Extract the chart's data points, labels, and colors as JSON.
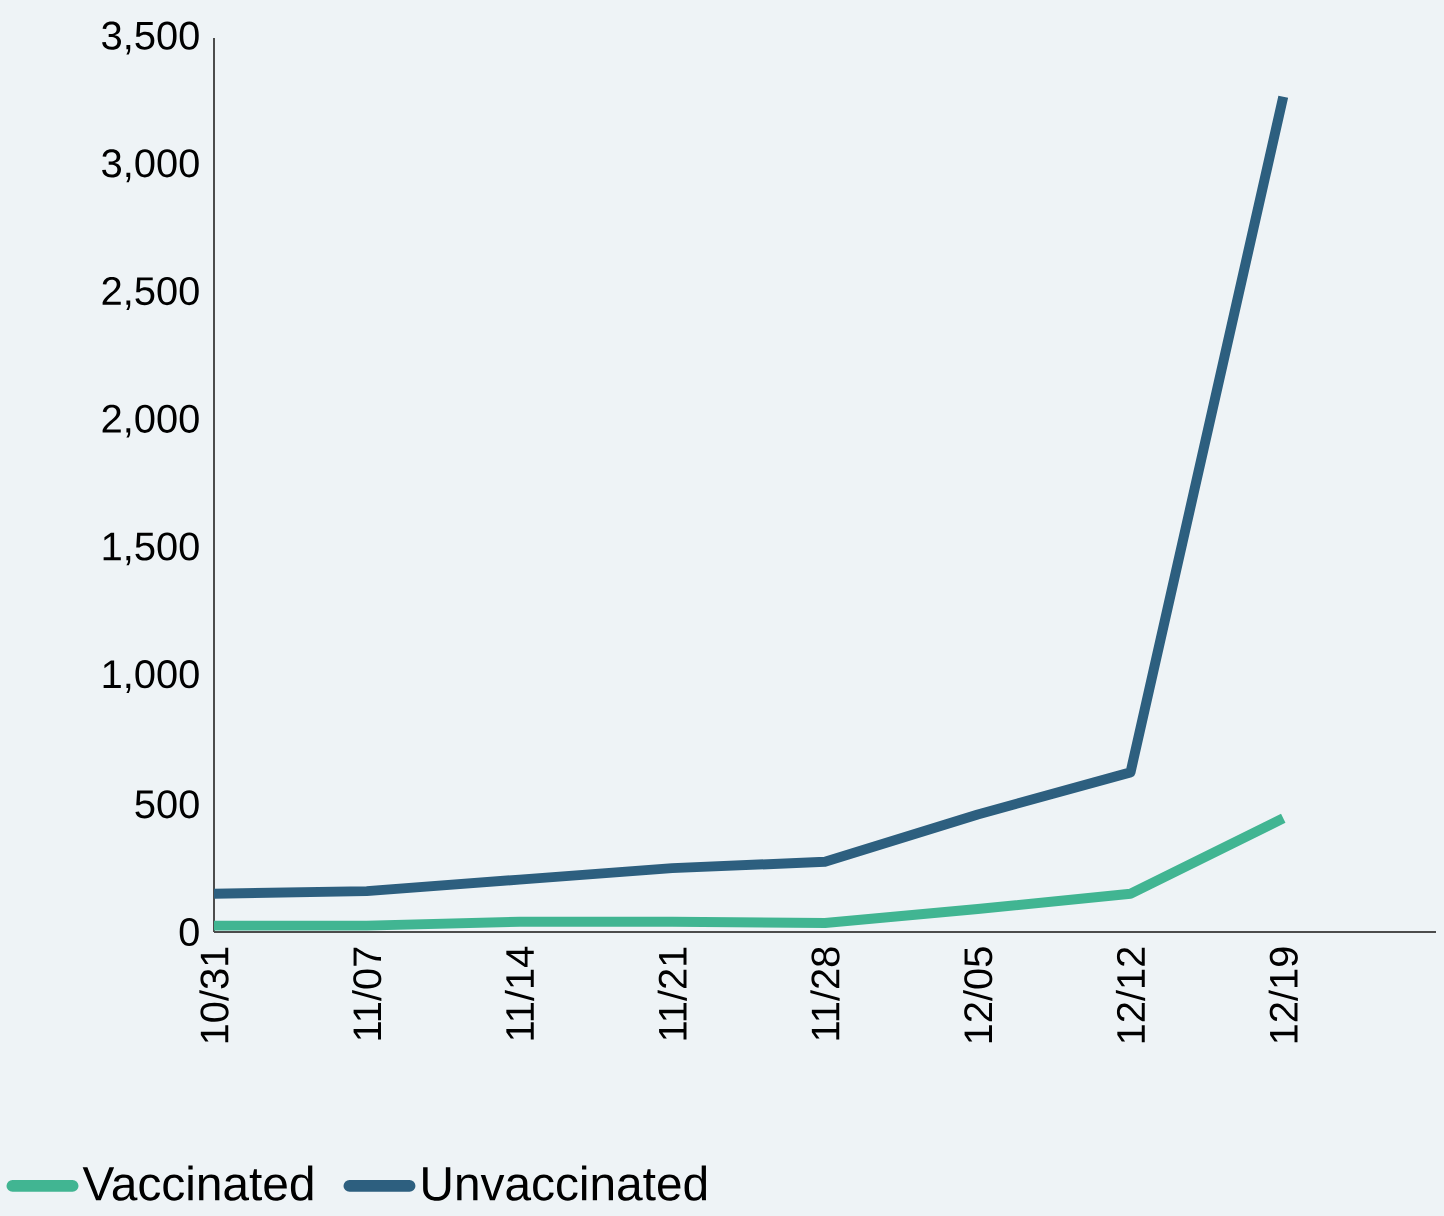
{
  "chart_data": {
    "type": "line",
    "categories": [
      "10/31",
      "11/07",
      "11/14",
      "11/21",
      "11/28",
      "12/05",
      "12/12",
      "12/19"
    ],
    "series": [
      {
        "name": "Vaccinated",
        "color": "#41b592",
        "values": [
          25,
          25,
          40,
          40,
          35,
          90,
          150,
          445
        ]
      },
      {
        "name": "Unvaccinated",
        "color": "#2d5f7f",
        "values": [
          150,
          160,
          205,
          250,
          275,
          460,
          625,
          3270
        ]
      }
    ],
    "ylim": [
      0,
      3500
    ],
    "yticks": [
      0,
      500,
      {
        "value": 1000,
        "label": "1,000"
      },
      {
        "value": 1500,
        "label": "1,500"
      },
      {
        "value": 2000,
        "label": "2,000"
      },
      {
        "value": 2500,
        "label": "2,500"
      },
      {
        "value": 3000,
        "label": "3,000"
      },
      {
        "value": 3500,
        "label": "3,500"
      }
    ],
    "legend": "bottom",
    "grid": false,
    "marker": "none",
    "line_style": "solid"
  }
}
